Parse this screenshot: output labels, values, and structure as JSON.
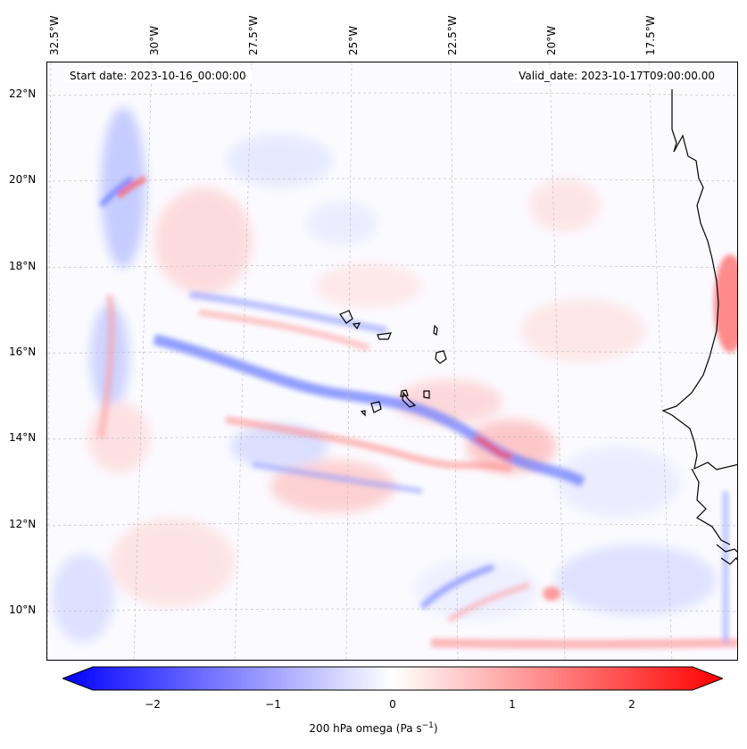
{
  "header": {
    "start_date": "Start date: 2023-10-16_00:00:00",
    "valid_date": "Valid_date: 2023-10-17T09:00:00.00"
  },
  "map": {
    "lon_labels": [
      "32.5°W",
      "30°W",
      "27.5°W",
      "25°W",
      "22.5°W",
      "20°W",
      "17.5°W"
    ],
    "lat_labels": [
      "22°N",
      "20°N",
      "18°N",
      "16°N",
      "14°N",
      "12°N",
      "10°N"
    ],
    "colors": {
      "negative": "#0000ff",
      "zero": "#ffffff",
      "positive": "#ff0000",
      "coast": "#000000"
    }
  },
  "colorbar": {
    "ticks": [
      "−2",
      "−1",
      "0",
      "1",
      "2"
    ],
    "label": "200 hPa omega (Pa s",
    "label_sup": "−1",
    "label_end": ")",
    "range": [
      -2.5,
      2.5
    ]
  }
}
